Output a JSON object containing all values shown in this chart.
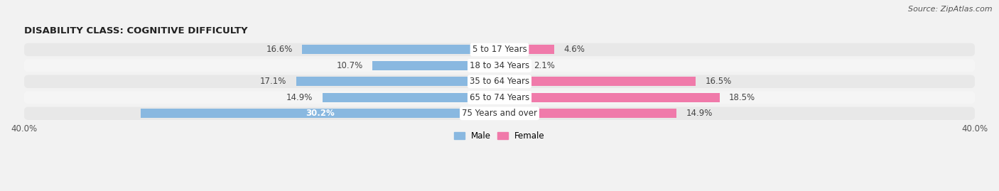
{
  "title": "DISABILITY CLASS: COGNITIVE DIFFICULTY",
  "source": "Source: ZipAtlas.com",
  "categories": [
    "5 to 17 Years",
    "18 to 34 Years",
    "35 to 64 Years",
    "65 to 74 Years",
    "75 Years and over"
  ],
  "male_values": [
    16.6,
    10.7,
    17.1,
    14.9,
    30.2
  ],
  "female_values": [
    4.6,
    2.1,
    16.5,
    18.5,
    14.9
  ],
  "male_color": "#89b8e0",
  "female_color": "#f07aaa",
  "male_label": "Male",
  "female_label": "Female",
  "axis_max": 40.0,
  "background_color": "#f2f2f2",
  "row_color_odd": "#e8e8e8",
  "row_color_even": "#f5f5f5",
  "title_fontsize": 9.5,
  "source_fontsize": 8,
  "label_fontsize": 8.5,
  "category_fontsize": 8.5,
  "tick_fontsize": 8.5,
  "bar_height": 0.58
}
